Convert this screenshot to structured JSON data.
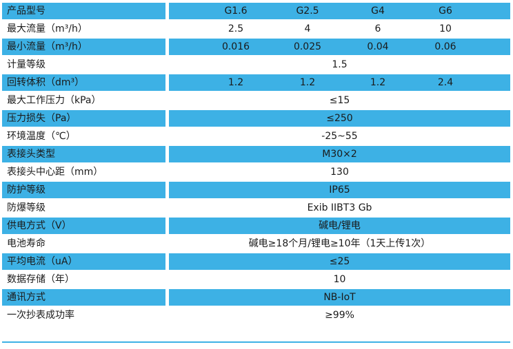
{
  "table": {
    "rows": [
      [
        "产品型号",
        "G1.6",
        "G2.5",
        "G4",
        "G6"
      ],
      [
        "最大流量（m³/h）",
        "2.5",
        "4",
        "6",
        "10"
      ],
      [
        "最小流量（m³/h）",
        "0.016",
        "0.025",
        "0.04",
        "0.06"
      ],
      [
        "计量等级",
        "1.5"
      ],
      [
        "回转体积（dm³）",
        "1.2",
        "1.2",
        "1.2",
        "2.4"
      ],
      [
        "最大工作压力（kPa）",
        "≤15"
      ],
      [
        "压力损失（Pa）",
        "≤250"
      ],
      [
        "环境温度（℃）",
        "-25~55"
      ],
      [
        "表接头类型",
        "M30×2"
      ],
      [
        "表接头中心距（mm）",
        "130"
      ],
      [
        "防护等级",
        "IP65"
      ],
      [
        "防爆等级",
        "Exib IIBT3 Gb"
      ],
      [
        "供电方式（V）",
        "碱电/锂电"
      ],
      [
        "电池寿命",
        "碱电≥18个月/锂电≥10年（1天上传1次）"
      ],
      [
        "平均电流（uA）",
        "≤25"
      ],
      [
        "数据存储（年）",
        "10"
      ],
      [
        "通讯方式",
        "NB-IoT"
      ],
      [
        "一次抄表成功率",
        "≥99%"
      ]
    ]
  }
}
